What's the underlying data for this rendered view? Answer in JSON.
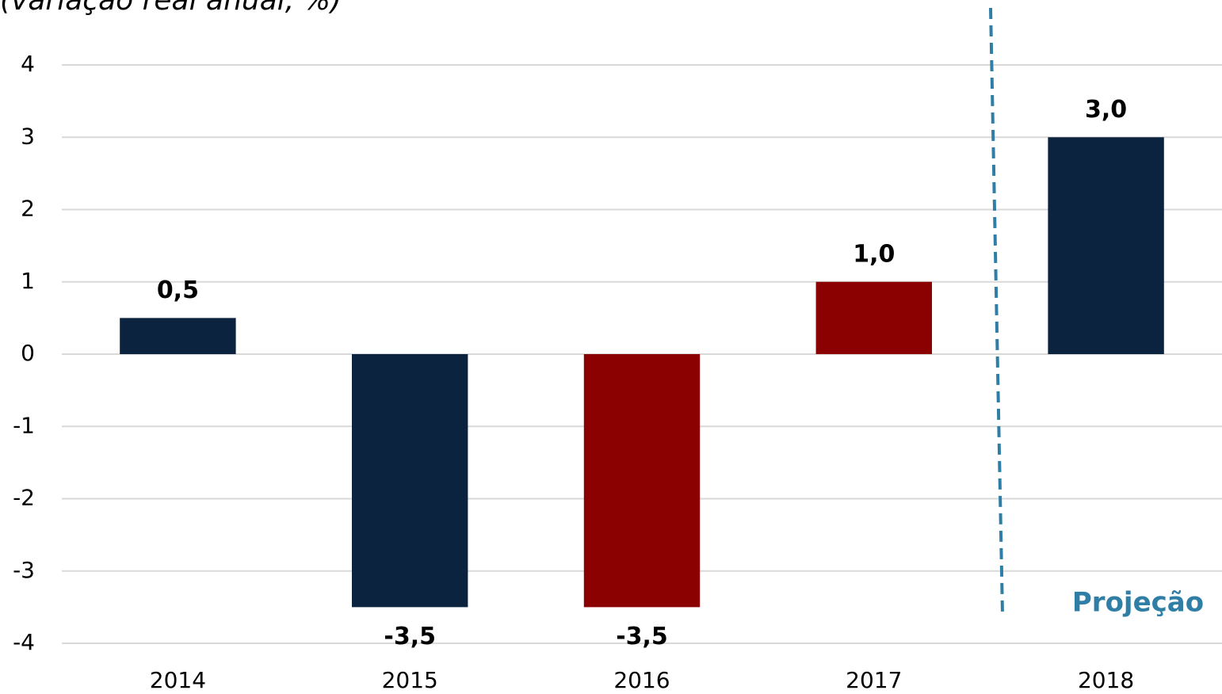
{
  "chart_data": {
    "type": "bar",
    "title": "(variação real anual, %)",
    "categories": [
      "2014",
      "2015",
      "2016",
      "2017",
      "2018"
    ],
    "values": [
      0.5,
      -3.5,
      -3.5,
      1.0,
      3.0
    ],
    "value_labels": [
      "0,5",
      "-3,5",
      "-3,5",
      "1,0",
      "3,0"
    ],
    "colors": [
      "#0c2340",
      "#0c2340",
      "#8b0000",
      "#8b0000",
      "#0c2340"
    ],
    "ylim": [
      -4,
      4
    ],
    "yticks": [
      -4,
      -3,
      -2,
      -1,
      0,
      1,
      2,
      3,
      4
    ],
    "grid": true,
    "annotation": "Projeção"
  }
}
